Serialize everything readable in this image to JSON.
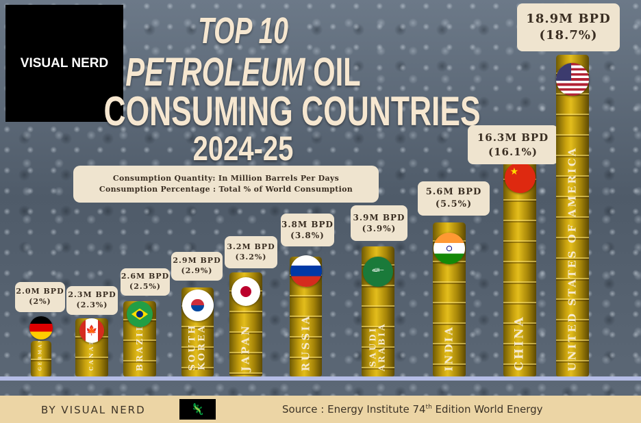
{
  "brand": {
    "logo_text": "VISUAL NERD",
    "byline": "BY VISUAL NERD"
  },
  "title": {
    "line1": "TOP 10",
    "line2a": "PETROLEUM",
    "line2b": "OIL",
    "line3": "CONSUMING COUNTRIES",
    "line4": "2024-25"
  },
  "legend": {
    "quantity": "Consumption Quantity: In Million Barrels Per Days",
    "percentage": "Consumption Percentage : Total % of World Consumption"
  },
  "source": {
    "prefix": "Source :  Energy Institute 74",
    "sup": "th",
    "suffix": " Edition World Energy"
  },
  "colors": {
    "barrel": "#c9a20e",
    "label_bg": "#efe4cf",
    "footer_bg": "#ecd5a5",
    "baseline": "#b5bde6"
  },
  "chart_data": {
    "type": "bar",
    "title": "TOP 10 PETROLEUM OIL CONSUMING COUNTRIES 2024-25",
    "unit": "Million Barrels Per Day",
    "categories": [
      "GERMANY",
      "CANADA",
      "BRAZIL",
      "SOUTH KOREA",
      "JAPAN",
      "RUSSIA",
      "SAUDI ARABIA",
      "INDIA",
      "CHINA",
      "UNITED STATES OF AMERICA"
    ],
    "values": [
      2.0,
      2.3,
      2.6,
      2.9,
      3.2,
      3.8,
      3.9,
      5.6,
      16.3,
      18.9
    ],
    "percentages": [
      2,
      2.3,
      2.5,
      2.9,
      3.2,
      3.8,
      3.9,
      5.5,
      16.1,
      18.7
    ],
    "value_labels": [
      "2.0M BPD",
      "2.3M BPD",
      "2.6M BPD",
      "2.9M BPD",
      "3.2M BPD",
      "3.8M BPD",
      "3.9M BPD",
      "5.6M BPD",
      "16.3M BPD",
      "18.9M BPD"
    ],
    "percent_labels": [
      "(2%)",
      "(2.3%)",
      "(2.5%)",
      "(2.9%)",
      "(3.2%)",
      "(3.8%)",
      "(3.9%)",
      "(5.5%)",
      "(16.1%)",
      "(18.7%)"
    ],
    "flags": [
      "germany-flag",
      "canada-flag",
      "brazil-flag",
      "south-korea-flag",
      "japan-flag",
      "russia-flag",
      "saudi-arabia-flag",
      "india-flag",
      "china-flag",
      "usa-flag"
    ]
  }
}
